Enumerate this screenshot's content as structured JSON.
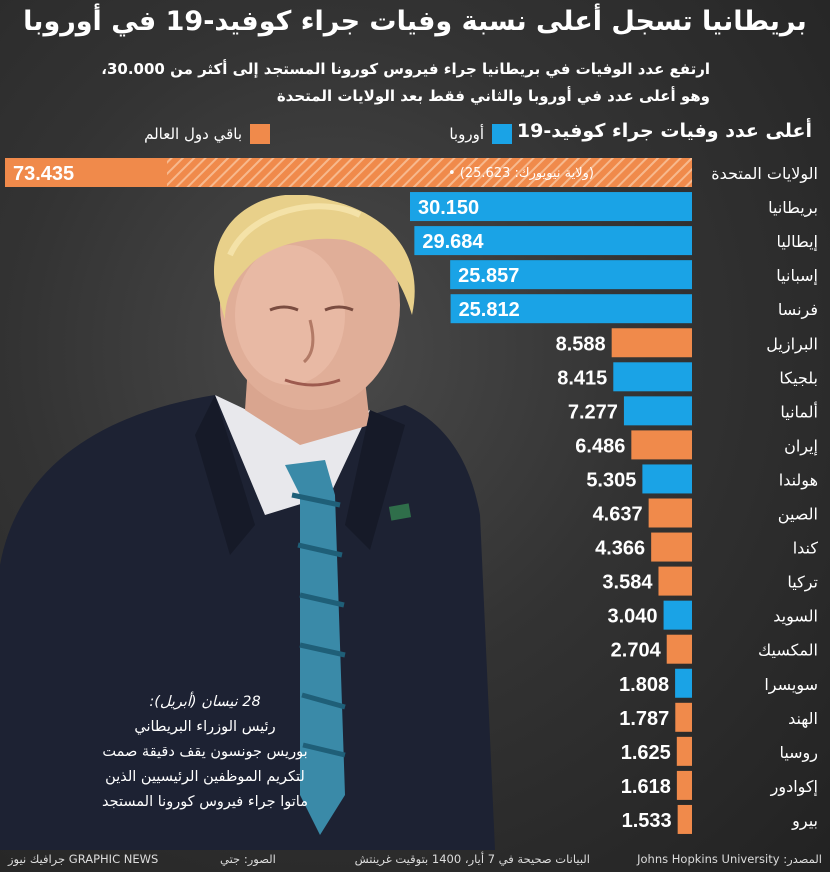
{
  "title": "بريطانيا تسجل أعلى نسبة وفيات جراء كوفيد-19 في أوروبا",
  "subtitle_line1": "ارتفع عدد الوفيات في بريطانيا جراء فيروس كورونا المستجد إلى أكثر من 30.000،",
  "subtitle_line2": "وهو أعلى عدد في أوروبا والثاني فقط بعد الولايات المتحدة",
  "chart_heading": "أعلى عدد وفيات جراء كوفيد-19",
  "legend": {
    "europe_label": "أوروبا",
    "world_label": "باقي دول العالم",
    "europe_color": "#1aa3e6",
    "world_color": "#f08a4b"
  },
  "chart_data": {
    "type": "bar",
    "title": "أعلى عدد وفيات جراء كوفيد-19",
    "orientation": "horizontal",
    "categories": [
      "الولايات المتحدة",
      "بريطانيا",
      "إيطاليا",
      "إسبانيا",
      "فرنسا",
      "البرازيل",
      "بلجيكا",
      "ألمانيا",
      "إيران",
      "هولندا",
      "الصين",
      "كندا",
      "تركيا",
      "السويد",
      "المكسيك",
      "سويسرا",
      "الهند",
      "روسيا",
      "إكوادور",
      "بيرو"
    ],
    "values": [
      73435,
      30150,
      29684,
      25857,
      25812,
      8588,
      8415,
      7277,
      6486,
      5305,
      4637,
      4366,
      3584,
      3040,
      2704,
      1808,
      1787,
      1625,
      1618,
      1533
    ],
    "labels": [
      "73.435",
      "30.150",
      "29.684",
      "25.857",
      "25.812",
      "8.588",
      "8.415",
      "7.277",
      "6.486",
      "5.305",
      "4.637",
      "4.366",
      "3.584",
      "3.040",
      "2.704",
      "1.808",
      "1.787",
      "1.625",
      "1.618",
      "1.533"
    ],
    "groups": [
      "world",
      "europe",
      "europe",
      "europe",
      "europe",
      "world",
      "europe",
      "europe",
      "world",
      "europe",
      "world",
      "world",
      "world",
      "europe",
      "world",
      "europe",
      "world",
      "world",
      "world",
      "world"
    ],
    "annotation": "(ولاية نيويورك: 25.623)",
    "annotation_value": 25623
  },
  "caption": {
    "date": "28 نيسان (أبريل):",
    "line1": "رئيس الوزراء البريطاني",
    "line2": "بوريس جونسون يقف دقيقة صمت",
    "line3": "لتكريم الموظفين الرئيسيين الذين",
    "line4": "ماتوا جراء فيروس كورونا المستجد"
  },
  "footer": {
    "source": "المصدر: Johns Hopkins University",
    "note": "البيانات صحيحة في 7 أيار، 1400 بتوقيت غرينتش",
    "photo_credit": "الصور: جتي",
    "brand": "GRAPHIC NEWS جرافيك نيوز"
  }
}
